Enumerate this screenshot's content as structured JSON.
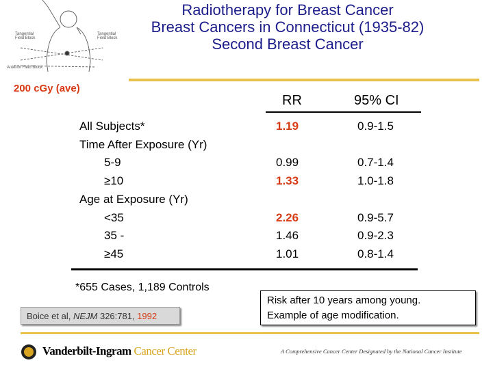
{
  "title_lines": [
    "Radiotherapy for Breast Cancer",
    "Breast Cancers in Connecticut (1935-82)",
    "Second Breast Cancer"
  ],
  "figure_labels": [
    "Tangential Field Block",
    "Tangential Field Block",
    "Anterior Field Block"
  ],
  "subtitle": "200 cGy (ave)",
  "table": {
    "header": [
      "RR",
      "95% CI"
    ],
    "rows": [
      {
        "label": "All Subjects*",
        "rr": "1.19",
        "ci": "0.9-1.5",
        "indent": false,
        "highlight": true
      },
      {
        "label": "Time After Exposure (Yr)",
        "indent": false
      },
      {
        "label": "5-9",
        "rr": "0.99",
        "ci": "0.7-1.4",
        "indent": true,
        "highlight": false
      },
      {
        "label": "≥10",
        "rr": "1.33",
        "ci": "1.0-1.8",
        "indent": true,
        "highlight": true
      },
      {
        "label": "Age at Exposure (Yr)",
        "indent": false
      },
      {
        "label": "<35",
        "rr": "2.26",
        "ci": "0.9-5.7",
        "indent": true,
        "highlight": true
      },
      {
        "label": "35 -",
        "rr": "1.46",
        "ci": "0.9-2.3",
        "indent": true,
        "highlight": false
      },
      {
        "label": "≥45",
        "rr": "1.01",
        "ci": "0.8-1.4",
        "indent": true,
        "highlight": false
      }
    ]
  },
  "footnote": "*655 Cases,  1,189 Controls",
  "citation": {
    "authors": "Boice et al,",
    "journal": "NEJM",
    "ref": "326:781,",
    "year": "1992"
  },
  "note_lines": [
    "Risk after 10 years among young.",
    "Example of age modification."
  ],
  "footer": {
    "name": "Vanderbilt-Ingram",
    "name_accent": "Cancer Center",
    "tagline": "A Comprehensive Cancer Center Designated by the National Cancer Institute"
  }
}
